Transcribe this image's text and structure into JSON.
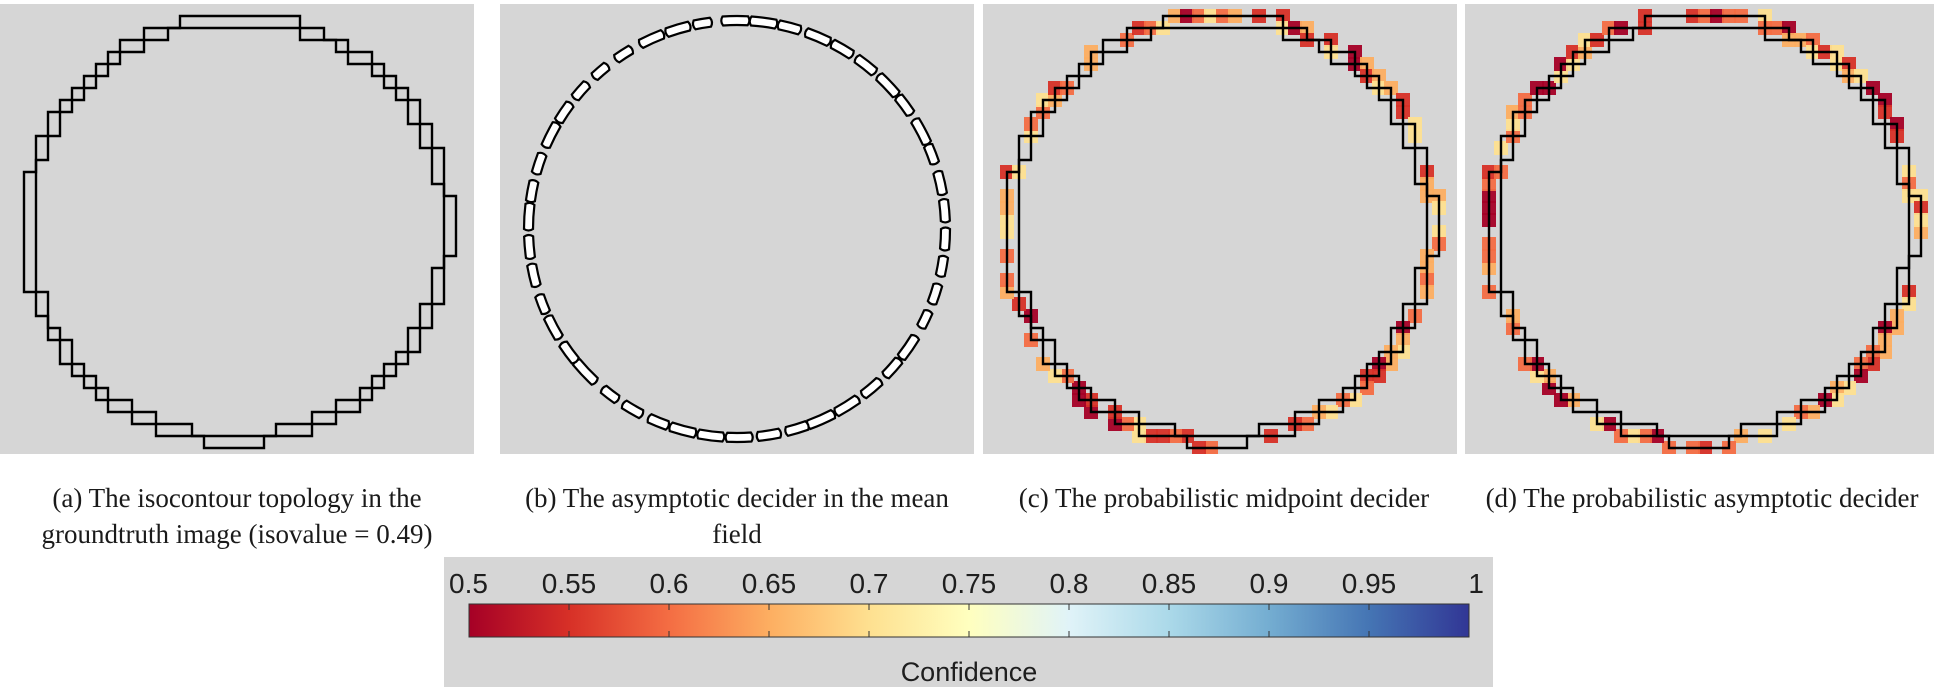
{
  "panels": [
    {
      "id": "a",
      "caption": "(a) The isocontour topology in the groundtruth image (isovalue = 0.49)",
      "style": "double",
      "heat": false
    },
    {
      "id": "b",
      "caption": "(b) The asymptotic decider in the mean field",
      "style": "broken",
      "heat": false
    },
    {
      "id": "c",
      "caption": "(c) The probabilistic midpoint decider",
      "style": "double",
      "heat": true
    },
    {
      "id": "d",
      "caption": "(d) The probabilistic asymptotic decider",
      "style": "double",
      "heat": true
    }
  ],
  "colorbar": {
    "title": "Confidence",
    "ticks": [
      "0.5",
      "0.55",
      "0.6",
      "0.65",
      "0.7",
      "0.75",
      "0.8",
      "0.85",
      "0.9",
      "0.95",
      "1"
    ],
    "range": [
      0.5,
      1
    ],
    "colormap": [
      "#a50026",
      "#d73027",
      "#f46d43",
      "#fdae61",
      "#fee090",
      "#ffffbf",
      "#e0f3f8",
      "#abd9e9",
      "#74add1",
      "#4575b4",
      "#313695"
    ]
  },
  "colors": {
    "background": "#d6d6d6",
    "contour": "#000000",
    "contour_fill": "#ffffff"
  }
}
